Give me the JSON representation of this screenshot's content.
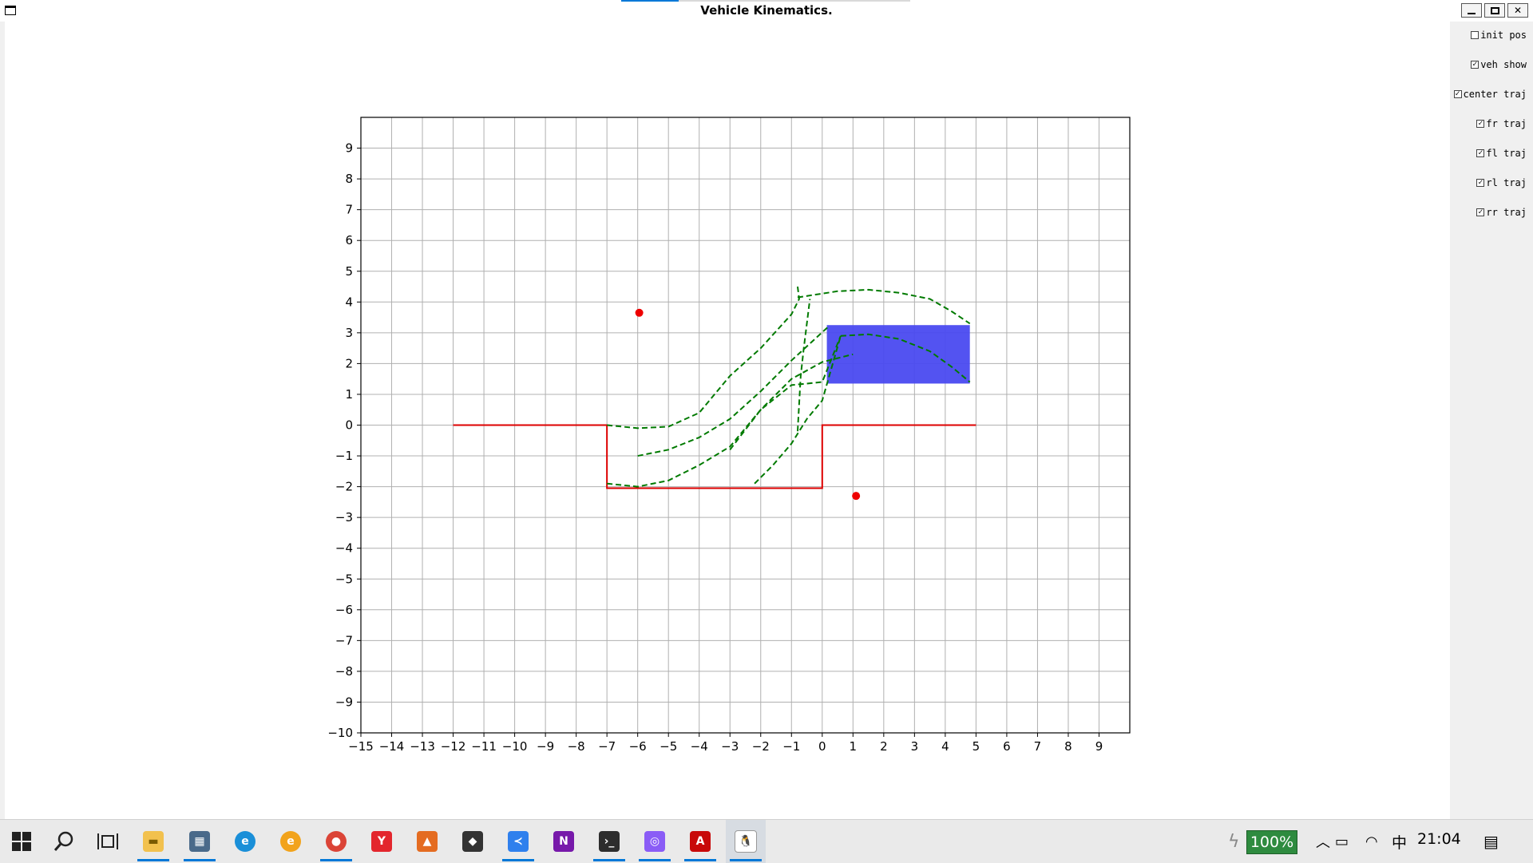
{
  "window": {
    "title": "Vehicle Kinematics.",
    "buttons": {
      "minimize": "–",
      "maximize": "□",
      "close": "✕"
    }
  },
  "side_panel": {
    "checkboxes": [
      {
        "label": "init pos",
        "checked": false
      },
      {
        "label": "veh show",
        "checked": true
      },
      {
        "label": "center traj",
        "checked": true
      },
      {
        "label": "fr traj",
        "checked": true
      },
      {
        "label": "fl traj",
        "checked": true
      },
      {
        "label": "rl traj",
        "checked": true
      },
      {
        "label": "rr traj",
        "checked": true
      }
    ]
  },
  "chart_data": {
    "type": "line",
    "xlim": [
      -15,
      10
    ],
    "ylim": [
      -10,
      10
    ],
    "xticks": [
      -15,
      -14,
      -13,
      -12,
      -11,
      -10,
      -9,
      -8,
      -7,
      -6,
      -5,
      -4,
      -3,
      -2,
      -1,
      0,
      1,
      2,
      3,
      4,
      5,
      6,
      7,
      8,
      9
    ],
    "yticks": [
      9,
      8,
      7,
      6,
      5,
      4,
      3,
      2,
      1,
      0,
      -1,
      -2,
      -3,
      -4,
      -5,
      -6,
      -7,
      -8,
      -9,
      -10
    ],
    "grid": true,
    "colors": {
      "boundary": "#dd0000",
      "trajectory": "#007a00",
      "vehicle": "#4a4af0",
      "points": "#ee0000",
      "grid": "#b0b0b0"
    },
    "series": [
      {
        "role": "parking-boundary",
        "style": "solid",
        "x": [
          -12,
          -7,
          -7,
          0,
          0,
          5
        ],
        "y": [
          0,
          0,
          -2.05,
          -2.05,
          0,
          0
        ]
      },
      {
        "role": "trajectory",
        "style": "dashed",
        "x": [
          -7,
          -6,
          -5,
          -4,
          -3,
          -2,
          -1,
          -0.75,
          -0.8
        ],
        "y": [
          0,
          -0.1,
          -0.05,
          0.4,
          1.6,
          2.5,
          3.6,
          4.1,
          4.5
        ]
      },
      {
        "role": "trajectory",
        "style": "dashed",
        "x": [
          -0.8,
          0.5,
          1.5,
          2.5,
          3.5,
          4.2,
          4.8
        ],
        "y": [
          4.15,
          4.35,
          4.4,
          4.3,
          4.1,
          3.7,
          3.3
        ]
      },
      {
        "role": "trajectory",
        "style": "dashed",
        "x": [
          -6,
          -5,
          -4,
          -3,
          -2,
          -1,
          0.2
        ],
        "y": [
          -1,
          -0.8,
          -0.4,
          0.2,
          1.1,
          2.1,
          3.2
        ]
      },
      {
        "role": "trajectory",
        "style": "dashed",
        "x": [
          -7,
          -6,
          -5,
          -4,
          -3,
          -2,
          -1,
          0,
          1
        ],
        "y": [
          -1.9,
          -2,
          -1.8,
          -1.3,
          -0.7,
          0.5,
          1.5,
          2.05,
          2.3
        ]
      },
      {
        "role": "trajectory",
        "style": "dashed",
        "x": [
          -2.2,
          -1.6,
          -1,
          -0.5,
          0,
          0.6
        ],
        "y": [
          -1.9,
          -1.3,
          -0.6,
          0.2,
          0.8,
          2.9
        ]
      },
      {
        "role": "trajectory",
        "style": "dashed",
        "x": [
          -3,
          -2,
          -1,
          0,
          0.6
        ],
        "y": [
          -0.8,
          0.5,
          1.3,
          1.4,
          2.9
        ]
      },
      {
        "role": "trajectory",
        "style": "dashed",
        "x": [
          0.6,
          1.5,
          2.5,
          3.5,
          4.2,
          4.8
        ],
        "y": [
          2.9,
          2.95,
          2.8,
          2.4,
          1.9,
          1.4
        ]
      },
      {
        "role": "trajectory",
        "style": "dashed",
        "x": [
          -0.8,
          -0.7,
          -0.6,
          -0.4
        ],
        "y": [
          -0.2,
          1.6,
          2.5,
          4.1
        ]
      }
    ],
    "vehicle": {
      "x_min": 0.15,
      "x_max": 4.8,
      "y_min": 1.35,
      "y_max": 3.25
    },
    "points": [
      {
        "x": -5.95,
        "y": 3.65
      },
      {
        "x": 1.1,
        "y": -2.3
      }
    ]
  },
  "taskbar": {
    "apps": [
      {
        "name": "start-icon"
      },
      {
        "name": "search-icon"
      },
      {
        "name": "task-view-icon"
      },
      {
        "name": "file-explorer-icon",
        "running": true
      },
      {
        "name": "calculator-icon",
        "running": true
      },
      {
        "name": "edge-icon"
      },
      {
        "name": "edge-beta-icon"
      },
      {
        "name": "chrome-icon",
        "running": true
      },
      {
        "name": "youdao-icon"
      },
      {
        "name": "matlab-icon"
      },
      {
        "name": "gitkraken-icon"
      },
      {
        "name": "vscode-icon",
        "running": true
      },
      {
        "name": "onenote-icon"
      },
      {
        "name": "terminal-icon",
        "running": true
      },
      {
        "name": "snipaste-icon",
        "running": true
      },
      {
        "name": "acrobat-icon",
        "running": true
      },
      {
        "name": "linux-penguin-icon",
        "running": true,
        "active": true
      }
    ],
    "tray": {
      "battery": "100%",
      "ime": "中",
      "clock": "21:04"
    }
  }
}
